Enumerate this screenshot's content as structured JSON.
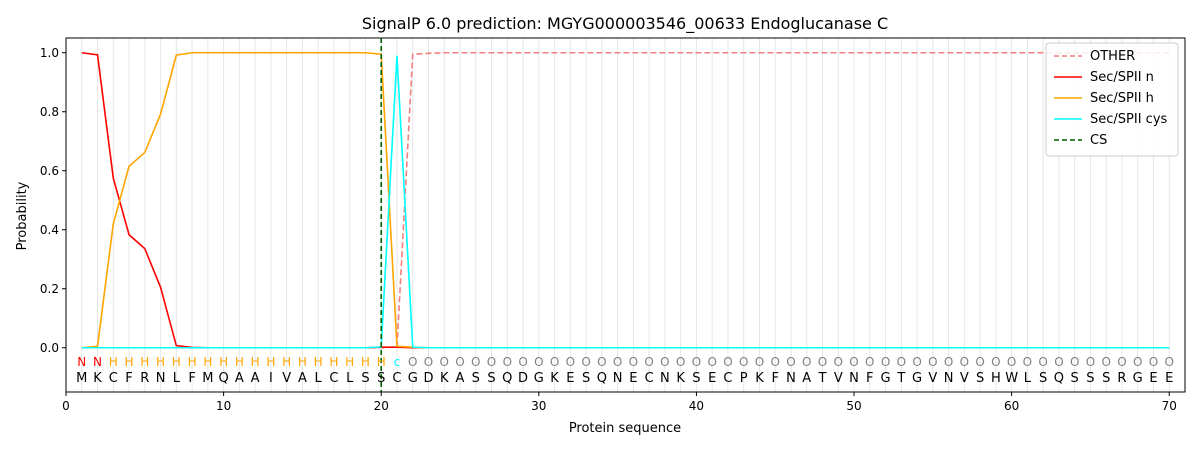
{
  "chart_data": {
    "type": "line",
    "title": "SignalP 6.0 prediction: MGYG000003546_00633 Endoglucanase C",
    "xlabel": "Protein sequence",
    "ylabel": "Probability",
    "xlim": [
      0,
      71
    ],
    "ylim": [
      -0.15,
      1.05
    ],
    "x_ticks": [
      0,
      10,
      20,
      30,
      40,
      50,
      60,
      70
    ],
    "y_ticks": [
      0.0,
      0.2,
      0.4,
      0.6,
      0.8,
      1.0
    ],
    "x_tick_labels": [
      "0",
      "10",
      "20",
      "30",
      "40",
      "50",
      "60",
      "70"
    ],
    "y_tick_labels": [
      "0.0",
      "0.2",
      "0.4",
      "0.6",
      "0.8",
      "1.0"
    ],
    "grid": "vertical lines at each residue",
    "legend_position": "top-right",
    "sequence": [
      "M",
      "K",
      "C",
      "F",
      "R",
      "N",
      "L",
      "F",
      "M",
      "Q",
      "A",
      "A",
      "I",
      "V",
      "A",
      "L",
      "C",
      "L",
      "S",
      "S",
      "C",
      "G",
      "D",
      "K",
      "A",
      "S",
      "S",
      "Q",
      "D",
      "G",
      "K",
      "E",
      "S",
      "Q",
      "N",
      "E",
      "C",
      "N",
      "K",
      "S",
      "E",
      "C",
      "P",
      "K",
      "F",
      "N",
      "A",
      "T",
      "V",
      "N",
      "F",
      "G",
      "T",
      "G",
      "V",
      "N",
      "V",
      "S",
      "H",
      "W",
      "L",
      "S",
      "Q",
      "S",
      "S",
      "S",
      "R",
      "G",
      "E",
      "E"
    ],
    "labels": [
      "N",
      "N",
      "H",
      "H",
      "H",
      "H",
      "H",
      "H",
      "H",
      "H",
      "H",
      "H",
      "H",
      "H",
      "H",
      "H",
      "H",
      "H",
      "H",
      "H",
      "c",
      "O",
      "O",
      "O",
      "O",
      "O",
      "O",
      "O",
      "O",
      "O",
      "O",
      "O",
      "O",
      "O",
      "O",
      "O",
      "O",
      "O",
      "O",
      "O",
      "O",
      "O",
      "O",
      "O",
      "O",
      "O",
      "O",
      "O",
      "O",
      "O",
      "O",
      "O",
      "O",
      "O",
      "O",
      "O",
      "O",
      "O",
      "O",
      "O",
      "O",
      "O",
      "O",
      "O",
      "O",
      "O",
      "O",
      "O",
      "O",
      "O"
    ],
    "label_colors": {
      "N": "#ff0000",
      "H": "#ffa500",
      "c": "#00ffff",
      "O": "#808080"
    },
    "series": [
      {
        "name": "OTHER",
        "color": "#f08080",
        "dash": true,
        "values": [
          0,
          0,
          0,
          0,
          0,
          0,
          0,
          0,
          0,
          0,
          0,
          0,
          0,
          0,
          0,
          0,
          0,
          0,
          0,
          0,
          0.003,
          0.995,
          0.998,
          1,
          1,
          1,
          1,
          1,
          1,
          1,
          1,
          1,
          1,
          1,
          1,
          1,
          1,
          1,
          1,
          1,
          1,
          1,
          1,
          1,
          1,
          1,
          1,
          1,
          1,
          1,
          1,
          1,
          1,
          1,
          1,
          1,
          1,
          1,
          1,
          1,
          1,
          1,
          1,
          1,
          1,
          1,
          1,
          1,
          1,
          1
        ]
      },
      {
        "name": "Sec/SPII n",
        "color": "#ff0000",
        "dash": false,
        "values": [
          1.0,
          0.993,
          0.575,
          0.383,
          0.336,
          0.205,
          0.007,
          0.001,
          0,
          0,
          0,
          0,
          0,
          0,
          0,
          0,
          0,
          0,
          0,
          0.002,
          0.002,
          0,
          0,
          0,
          0,
          0,
          0,
          0,
          0,
          0,
          0,
          0,
          0,
          0,
          0,
          0,
          0,
          0,
          0,
          0,
          0,
          0,
          0,
          0,
          0,
          0,
          0,
          0,
          0,
          0,
          0,
          0,
          0,
          0,
          0,
          0,
          0,
          0,
          0,
          0,
          0,
          0,
          0,
          0,
          0,
          0,
          0,
          0,
          0,
          0
        ]
      },
      {
        "name": "Sec/SPII h",
        "color": "#ffa500",
        "dash": false,
        "values": [
          0,
          0.005,
          0.42,
          0.615,
          0.662,
          0.792,
          0.992,
          1.0,
          1.0,
          1.0,
          1.0,
          1.0,
          1.0,
          1.0,
          1.0,
          1.0,
          1.0,
          1.0,
          1.0,
          0.995,
          0.005,
          0.002,
          0,
          0,
          0,
          0,
          0,
          0,
          0,
          0,
          0,
          0,
          0,
          0,
          0,
          0,
          0,
          0,
          0,
          0,
          0,
          0,
          0,
          0,
          0,
          0,
          0,
          0,
          0,
          0,
          0,
          0,
          0,
          0,
          0,
          0,
          0,
          0,
          0,
          0,
          0,
          0,
          0,
          0,
          0,
          0,
          0,
          0,
          0,
          0
        ]
      },
      {
        "name": "Sec/SPII cys",
        "color": "#00ffff",
        "dash": false,
        "values": [
          0,
          0,
          0,
          0,
          0,
          0,
          0,
          0,
          0,
          0,
          0,
          0,
          0,
          0,
          0,
          0,
          0,
          0,
          0,
          0.003,
          0.99,
          0.002,
          0,
          0,
          0,
          0,
          0,
          0,
          0,
          0,
          0,
          0,
          0,
          0,
          0,
          0,
          0,
          0,
          0,
          0,
          0,
          0,
          0,
          0,
          0,
          0,
          0,
          0,
          0,
          0,
          0,
          0,
          0,
          0,
          0,
          0,
          0,
          0,
          0,
          0,
          0,
          0,
          0,
          0,
          0,
          0,
          0,
          0,
          0,
          0
        ]
      }
    ],
    "cs": {
      "name": "CS",
      "x": 20,
      "color": "#006400"
    }
  }
}
